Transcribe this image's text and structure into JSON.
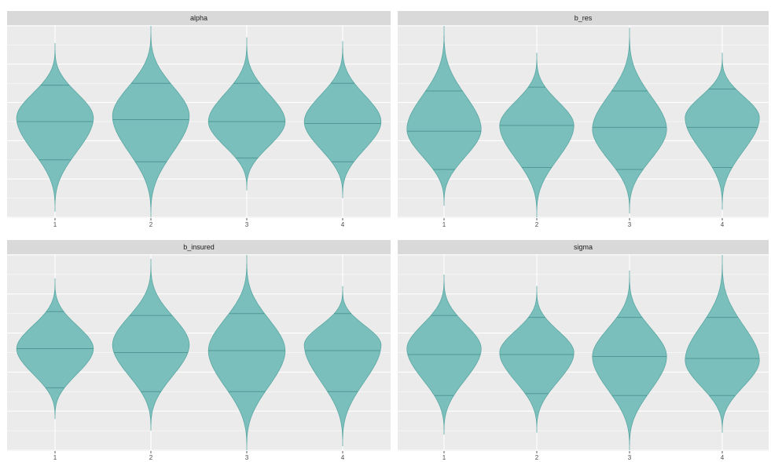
{
  "chart_data": [
    {
      "type": "violin",
      "title": "alpha",
      "categories": [
        "1",
        "2",
        "3",
        "4"
      ],
      "ylim": [
        0,
        100
      ],
      "violins": [
        {
          "min": 3,
          "q25": 30,
          "median": 50,
          "q75": 69,
          "max": 91,
          "mode": 52
        },
        {
          "min": 0,
          "q25": 29,
          "median": 51,
          "q75": 70,
          "max": 100,
          "mode": 53
        },
        {
          "min": 14,
          "q25": 31,
          "median": 50,
          "q75": 70,
          "max": 94,
          "mode": 50
        },
        {
          "min": 10,
          "q25": 29,
          "median": 49,
          "q75": 70,
          "max": 92,
          "mode": 50
        }
      ]
    },
    {
      "type": "violin",
      "title": "b_res",
      "categories": [
        "1",
        "2",
        "3",
        "4"
      ],
      "ylim": [
        0,
        100
      ],
      "violins": [
        {
          "min": 6,
          "q25": 25,
          "median": 45,
          "q75": 66,
          "max": 100,
          "mode": 46
        },
        {
          "min": 0,
          "q25": 26,
          "median": 48,
          "q75": 68,
          "max": 86,
          "mode": 48
        },
        {
          "min": 2,
          "q25": 25,
          "median": 47,
          "q75": 66,
          "max": 99,
          "mode": 46
        },
        {
          "min": 4,
          "q25": 26,
          "median": 47,
          "q75": 67,
          "max": 86,
          "mode": 52
        }
      ]
    },
    {
      "type": "violin",
      "title": "b_insured",
      "categories": [
        "1",
        "2",
        "3",
        "4"
      ],
      "ylim": [
        0,
        100
      ],
      "violins": [
        {
          "min": 16,
          "q25": 32,
          "median": 52,
          "q75": 71,
          "max": 88,
          "mode": 52
        },
        {
          "min": 10,
          "q25": 30,
          "median": 50,
          "q75": 69,
          "max": 98,
          "mode": 54
        },
        {
          "min": 0,
          "q25": 30,
          "median": 51,
          "q75": 70,
          "max": 100,
          "mode": 51
        },
        {
          "min": 2,
          "q25": 30,
          "median": 51,
          "q75": 70,
          "max": 84,
          "mode": 54
        }
      ]
    },
    {
      "type": "violin",
      "title": "sigma",
      "categories": [
        "1",
        "2",
        "3",
        "4"
      ],
      "ylim": [
        0,
        100
      ],
      "violins": [
        {
          "min": 8,
          "q25": 28,
          "median": 49,
          "q75": 69,
          "max": 90,
          "mode": 52
        },
        {
          "min": 9,
          "q25": 29,
          "median": 49,
          "q75": 68,
          "max": 84,
          "mode": 50
        },
        {
          "min": 0,
          "q25": 28,
          "median": 48,
          "q75": 68,
          "max": 92,
          "mode": 48
        },
        {
          "min": 9,
          "q25": 28,
          "median": 47,
          "q75": 68,
          "max": 100,
          "mode": 46
        }
      ]
    }
  ],
  "colors": {
    "violin_fill": "#7bbfbc",
    "violin_stroke": "#5aa8a4",
    "quantile_line": "#4f9895",
    "panel_bg": "#ebebeb",
    "strip_bg": "#d9d9d9",
    "grid": "#ffffff"
  }
}
